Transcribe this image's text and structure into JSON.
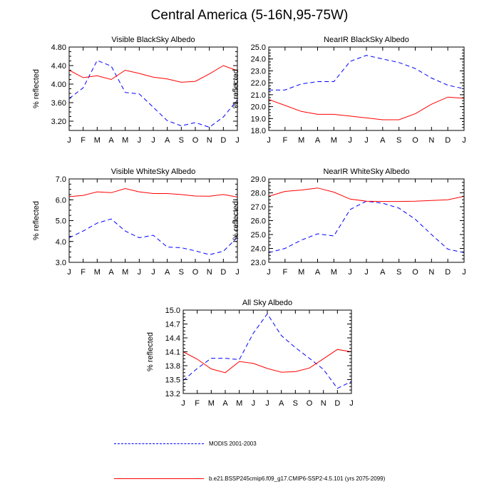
{
  "title": "Central America (5-16N,95-75W)",
  "colors": {
    "modis": "#0000ff",
    "model": "#ff0000",
    "axis": "#000000"
  },
  "chart_data": [
    {
      "type": "line",
      "title": "Visible BlackSky Albedo",
      "ylabel": "% reflected",
      "categories": [
        "J",
        "F",
        "M",
        "A",
        "M",
        "J",
        "J",
        "A",
        "S",
        "O",
        "N",
        "D",
        "J"
      ],
      "ylim": [
        3.0,
        4.8
      ],
      "yticks": [
        3.2,
        3.6,
        4.0,
        4.4,
        4.8
      ],
      "ytick_labels": [
        "3.20",
        "3.60",
        "4.00",
        "4.40",
        "4.80"
      ],
      "series": [
        {
          "name": "MODIS 2001-2003",
          "style": "dashed",
          "color": "#0000ff",
          "values": [
            3.69,
            3.92,
            4.51,
            4.39,
            3.82,
            3.79,
            3.5,
            3.21,
            3.1,
            3.17,
            3.07,
            3.29,
            3.66
          ]
        },
        {
          "name": "b.e21.BSSP245cmip6.f09_g17.CMIP6-SSP2-4.5.101 (yrs 2075-2099)",
          "style": "solid",
          "color": "#ff0000",
          "values": [
            4.3,
            4.14,
            4.18,
            4.1,
            4.3,
            4.23,
            4.15,
            4.11,
            4.04,
            4.06,
            4.22,
            4.4,
            4.29
          ]
        }
      ]
    },
    {
      "type": "line",
      "title": "NearIR BlackSky Albedo",
      "ylabel": "% reflected",
      "categories": [
        "J",
        "F",
        "M",
        "A",
        "M",
        "J",
        "J",
        "A",
        "S",
        "O",
        "N",
        "D",
        "J"
      ],
      "ylim": [
        18.0,
        25.0
      ],
      "yticks": [
        18,
        19,
        20,
        21,
        22,
        23,
        24,
        25
      ],
      "ytick_labels": [
        "18.0",
        "19.0",
        "20.0",
        "21.0",
        "22.0",
        "23.0",
        "24.0",
        "25.0"
      ],
      "series": [
        {
          "name": "MODIS 2001-2003",
          "style": "dashed",
          "color": "#0000ff",
          "values": [
            21.4,
            21.4,
            21.9,
            22.1,
            22.1,
            23.8,
            24.3,
            24.0,
            23.7,
            23.2,
            22.4,
            21.8,
            21.5
          ]
        },
        {
          "name": "b.e21.BSSP245cmip6.f09_g17.CMIP6-SSP2-4.5.101 (yrs 2075-2099)",
          "style": "solid",
          "color": "#ff0000",
          "values": [
            20.6,
            20.1,
            19.6,
            19.35,
            19.35,
            19.2,
            19.05,
            18.9,
            18.9,
            19.4,
            20.2,
            20.8,
            20.7
          ]
        }
      ]
    },
    {
      "type": "line",
      "title": "Visible WhiteSky Albedo",
      "ylabel": "% reflected",
      "categories": [
        "J",
        "F",
        "M",
        "A",
        "M",
        "J",
        "J",
        "A",
        "S",
        "O",
        "N",
        "D",
        "J"
      ],
      "ylim": [
        3.0,
        7.0
      ],
      "yticks": [
        3,
        4,
        5,
        6,
        7
      ],
      "ytick_labels": [
        "3.0",
        "4.0",
        "5.0",
        "6.0",
        "7.0"
      ],
      "series": [
        {
          "name": "MODIS 2001-2003",
          "style": "dashed",
          "color": "#0000ff",
          "values": [
            4.18,
            4.5,
            4.88,
            5.08,
            4.5,
            4.18,
            4.3,
            3.73,
            3.7,
            3.55,
            3.37,
            3.53,
            4.2
          ]
        },
        {
          "name": "b.e21.BSSP245cmip6.f09_g17.CMIP6-SSP2-4.5.101 (yrs 2075-2099)",
          "style": "solid",
          "color": "#ff0000",
          "values": [
            6.15,
            6.21,
            6.38,
            6.34,
            6.54,
            6.38,
            6.3,
            6.3,
            6.25,
            6.18,
            6.17,
            6.25,
            6.13
          ]
        }
      ]
    },
    {
      "type": "line",
      "title": "NearIR WhiteSky Albedo",
      "ylabel": "% reflected",
      "categories": [
        "J",
        "F",
        "M",
        "A",
        "M",
        "J",
        "J",
        "A",
        "S",
        "O",
        "N",
        "D",
        "J"
      ],
      "ylim": [
        23.0,
        29.0
      ],
      "yticks": [
        23,
        24,
        25,
        26,
        27,
        28,
        29
      ],
      "ytick_labels": [
        "23.0",
        "24.0",
        "25.0",
        "26.0",
        "27.0",
        "28.0",
        "29.0"
      ],
      "series": [
        {
          "name": "MODIS 2001-2003",
          "style": "dashed",
          "color": "#0000ff",
          "values": [
            23.7,
            24.0,
            24.6,
            25.05,
            24.9,
            26.8,
            27.4,
            27.25,
            26.9,
            26.1,
            25.0,
            23.95,
            23.7
          ]
        },
        {
          "name": "b.e21.BSSP245cmip6.f09_g17.CMIP6-SSP2-4.5.101 (yrs 2075-2099)",
          "style": "solid",
          "color": "#ff0000",
          "values": [
            27.75,
            28.1,
            28.2,
            28.35,
            28.05,
            27.55,
            27.4,
            27.38,
            27.38,
            27.4,
            27.45,
            27.5,
            27.75
          ]
        }
      ]
    },
    {
      "type": "line",
      "title": "All Sky Albedo",
      "ylabel": "% reflected",
      "categories": [
        "J",
        "F",
        "M",
        "A",
        "M",
        "J",
        "J",
        "A",
        "S",
        "O",
        "N",
        "D",
        "J"
      ],
      "ylim": [
        13.2,
        15.0
      ],
      "yticks": [
        13.2,
        13.5,
        13.8,
        14.1,
        14.4,
        14.7,
        15.0
      ],
      "ytick_labels": [
        "13.2",
        "13.5",
        "13.8",
        "14.1",
        "14.4",
        "14.7",
        "15.0"
      ],
      "series": [
        {
          "name": "MODIS 2001-2003",
          "style": "dashed",
          "color": "#0000ff",
          "values": [
            13.48,
            13.74,
            13.96,
            13.96,
            13.93,
            14.5,
            14.92,
            14.45,
            14.19,
            13.96,
            13.72,
            13.31,
            13.46
          ]
        },
        {
          "name": "b.e21.BSSP245cmip6.f09_g17.CMIP6-SSP2-4.5.101 (yrs 2075-2099)",
          "style": "solid",
          "color": "#ff0000",
          "values": [
            14.1,
            13.94,
            13.73,
            13.65,
            13.89,
            13.85,
            13.74,
            13.66,
            13.67,
            13.75,
            13.95,
            14.15,
            14.1
          ]
        }
      ]
    }
  ],
  "legend": [
    {
      "label": "MODIS 2001-2003",
      "style": "dashed",
      "color": "#0000ff"
    },
    {
      "label": "b.e21.BSSP245cmip6.f09_g17.CMIP6-SSP2-4.5.101 (yrs 2075-2099)",
      "style": "solid",
      "color": "#ff0000"
    }
  ]
}
